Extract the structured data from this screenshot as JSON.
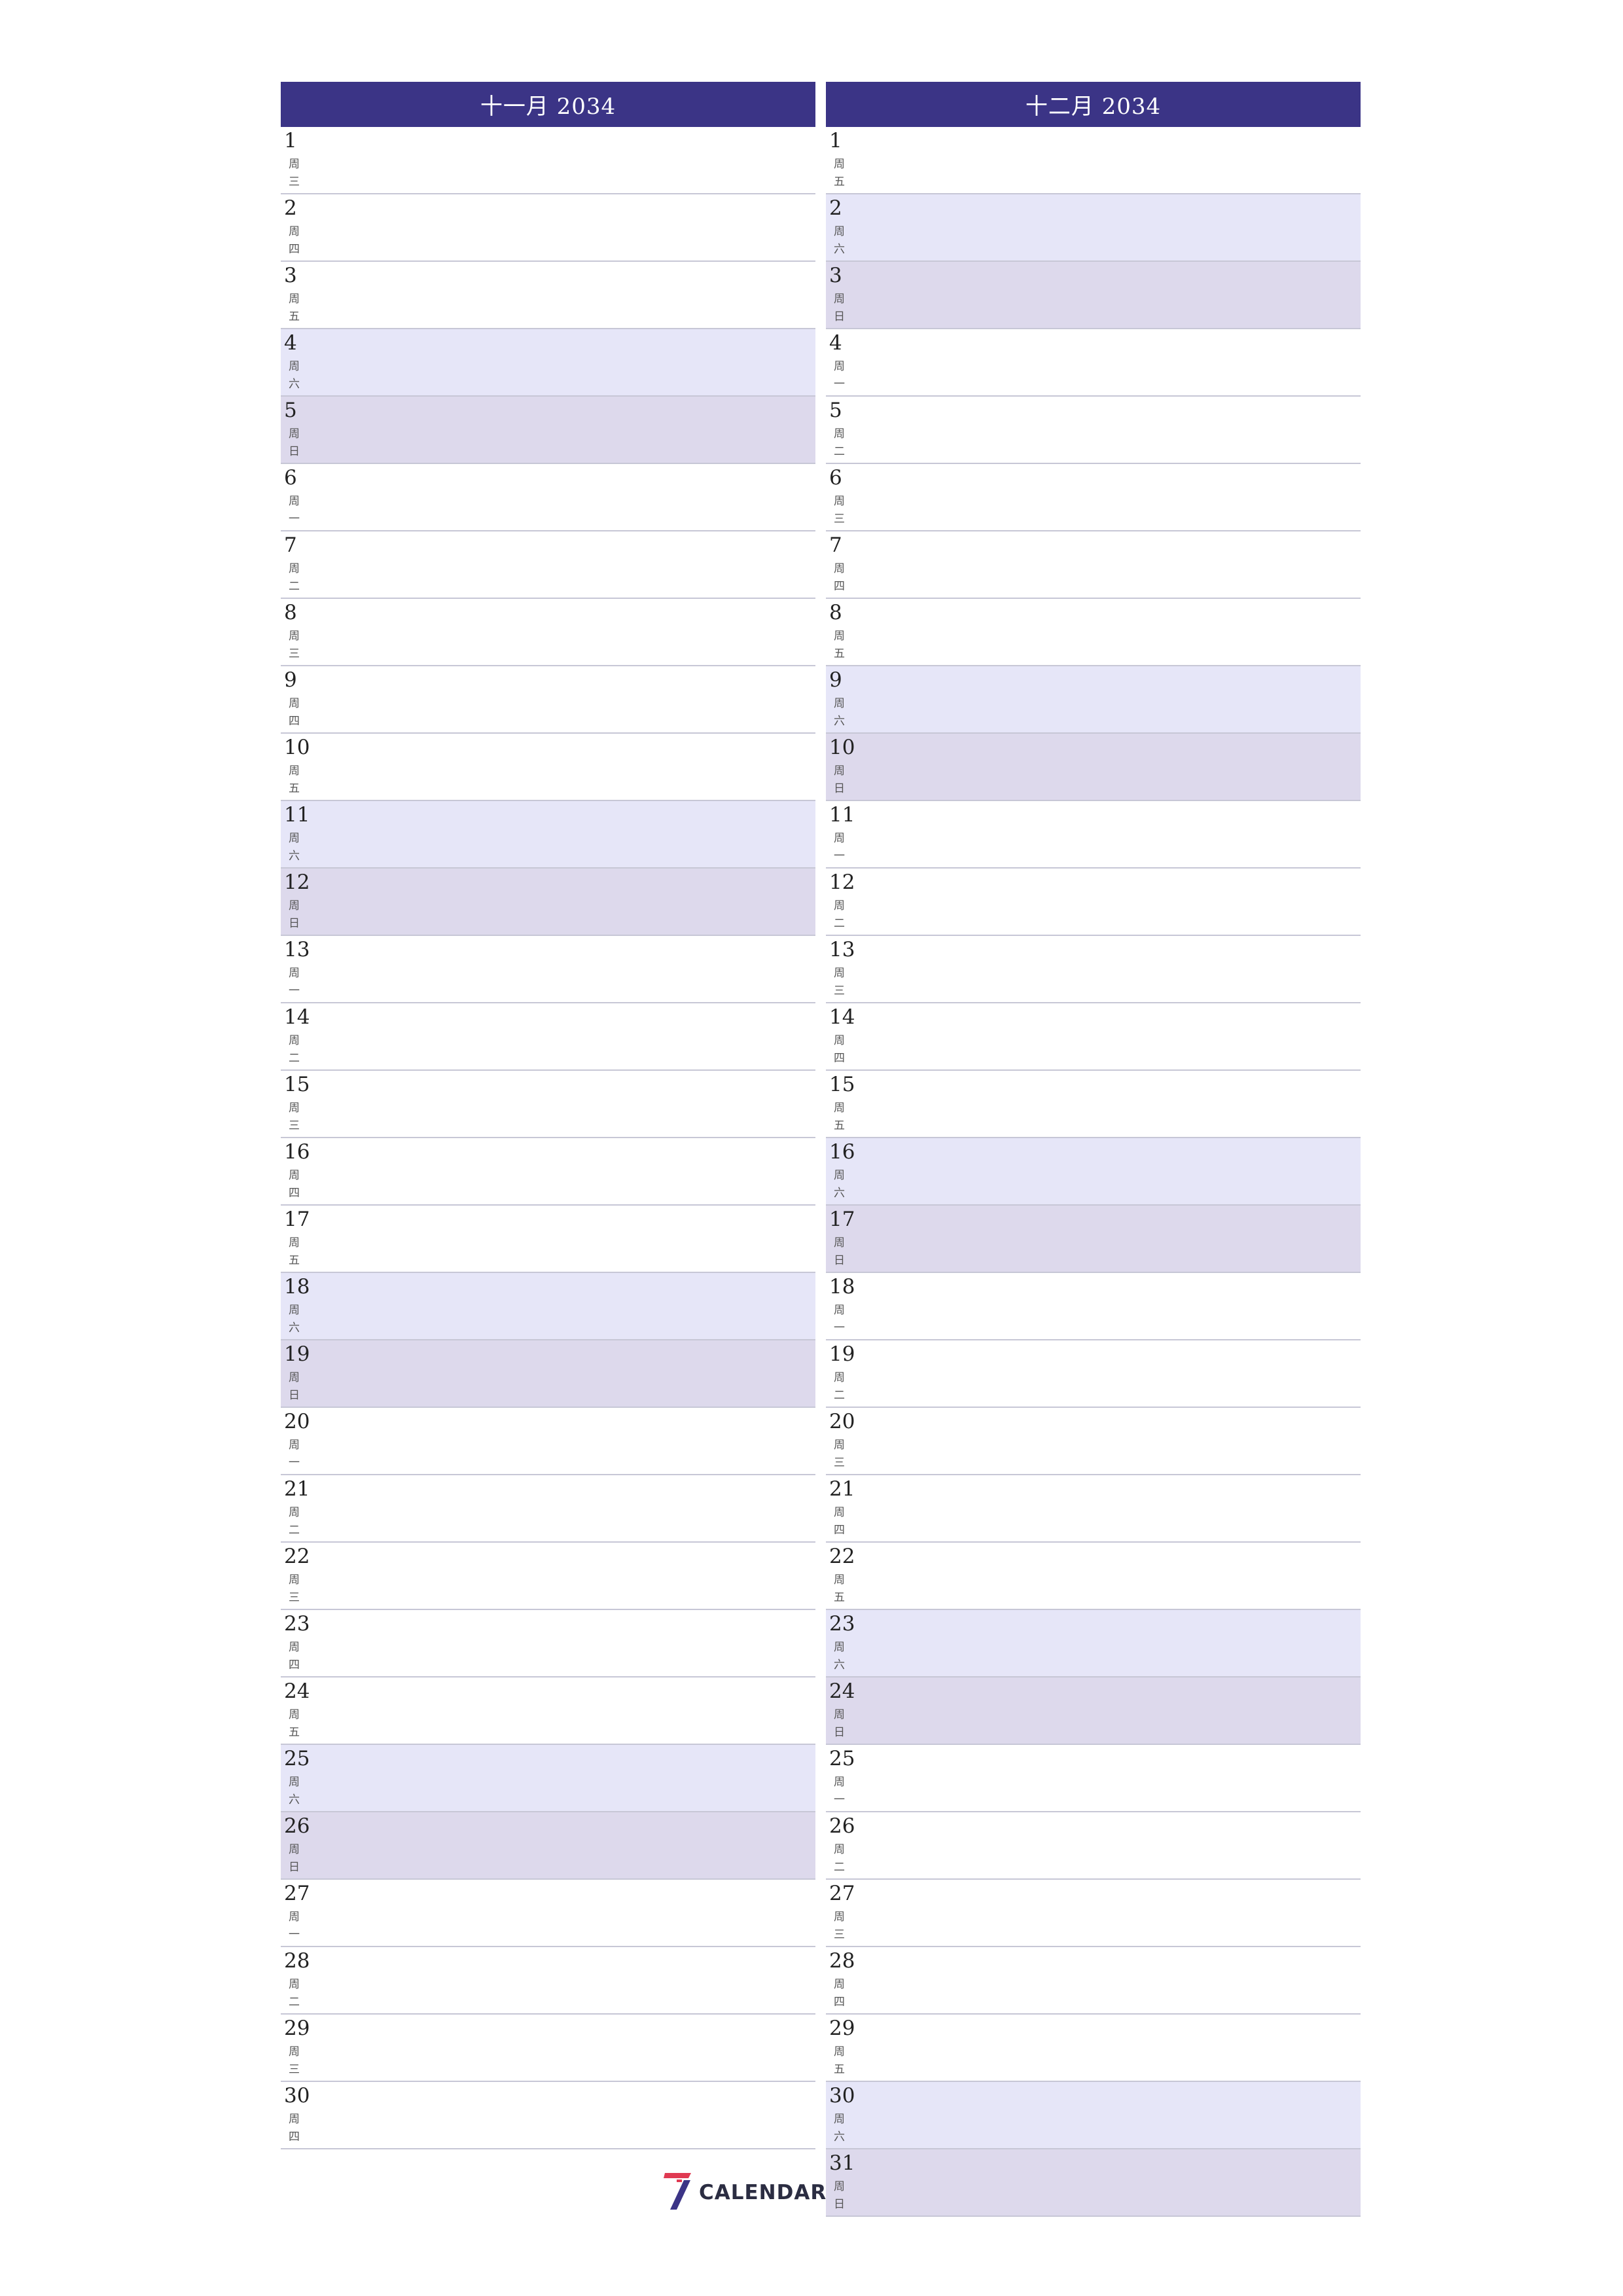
{
  "months": [
    {
      "title": "十一月 2034",
      "days": [
        {
          "num": "1",
          "wd": "周三",
          "type": "weekday"
        },
        {
          "num": "2",
          "wd": "周四",
          "type": "weekday"
        },
        {
          "num": "3",
          "wd": "周五",
          "type": "weekday"
        },
        {
          "num": "4",
          "wd": "周六",
          "type": "sat"
        },
        {
          "num": "5",
          "wd": "周日",
          "type": "sun"
        },
        {
          "num": "6",
          "wd": "周一",
          "type": "weekday"
        },
        {
          "num": "7",
          "wd": "周二",
          "type": "weekday"
        },
        {
          "num": "8",
          "wd": "周三",
          "type": "weekday"
        },
        {
          "num": "9",
          "wd": "周四",
          "type": "weekday"
        },
        {
          "num": "10",
          "wd": "周五",
          "type": "weekday"
        },
        {
          "num": "11",
          "wd": "周六",
          "type": "sat"
        },
        {
          "num": "12",
          "wd": "周日",
          "type": "sun"
        },
        {
          "num": "13",
          "wd": "周一",
          "type": "weekday"
        },
        {
          "num": "14",
          "wd": "周二",
          "type": "weekday"
        },
        {
          "num": "15",
          "wd": "周三",
          "type": "weekday"
        },
        {
          "num": "16",
          "wd": "周四",
          "type": "weekday"
        },
        {
          "num": "17",
          "wd": "周五",
          "type": "weekday"
        },
        {
          "num": "18",
          "wd": "周六",
          "type": "sat"
        },
        {
          "num": "19",
          "wd": "周日",
          "type": "sun"
        },
        {
          "num": "20",
          "wd": "周一",
          "type": "weekday"
        },
        {
          "num": "21",
          "wd": "周二",
          "type": "weekday"
        },
        {
          "num": "22",
          "wd": "周三",
          "type": "weekday"
        },
        {
          "num": "23",
          "wd": "周四",
          "type": "weekday"
        },
        {
          "num": "24",
          "wd": "周五",
          "type": "weekday"
        },
        {
          "num": "25",
          "wd": "周六",
          "type": "sat"
        },
        {
          "num": "26",
          "wd": "周日",
          "type": "sun"
        },
        {
          "num": "27",
          "wd": "周一",
          "type": "weekday"
        },
        {
          "num": "28",
          "wd": "周二",
          "type": "weekday"
        },
        {
          "num": "29",
          "wd": "周三",
          "type": "weekday"
        },
        {
          "num": "30",
          "wd": "周四",
          "type": "weekday"
        }
      ]
    },
    {
      "title": "十二月 2034",
      "days": [
        {
          "num": "1",
          "wd": "周五",
          "type": "weekday"
        },
        {
          "num": "2",
          "wd": "周六",
          "type": "sat"
        },
        {
          "num": "3",
          "wd": "周日",
          "type": "sun"
        },
        {
          "num": "4",
          "wd": "周一",
          "type": "weekday"
        },
        {
          "num": "5",
          "wd": "周二",
          "type": "weekday"
        },
        {
          "num": "6",
          "wd": "周三",
          "type": "weekday"
        },
        {
          "num": "7",
          "wd": "周四",
          "type": "weekday"
        },
        {
          "num": "8",
          "wd": "周五",
          "type": "weekday"
        },
        {
          "num": "9",
          "wd": "周六",
          "type": "sat"
        },
        {
          "num": "10",
          "wd": "周日",
          "type": "sun"
        },
        {
          "num": "11",
          "wd": "周一",
          "type": "weekday"
        },
        {
          "num": "12",
          "wd": "周二",
          "type": "weekday"
        },
        {
          "num": "13",
          "wd": "周三",
          "type": "weekday"
        },
        {
          "num": "14",
          "wd": "周四",
          "type": "weekday"
        },
        {
          "num": "15",
          "wd": "周五",
          "type": "weekday"
        },
        {
          "num": "16",
          "wd": "周六",
          "type": "sat"
        },
        {
          "num": "17",
          "wd": "周日",
          "type": "sun"
        },
        {
          "num": "18",
          "wd": "周一",
          "type": "weekday"
        },
        {
          "num": "19",
          "wd": "周二",
          "type": "weekday"
        },
        {
          "num": "20",
          "wd": "周三",
          "type": "weekday"
        },
        {
          "num": "21",
          "wd": "周四",
          "type": "weekday"
        },
        {
          "num": "22",
          "wd": "周五",
          "type": "weekday"
        },
        {
          "num": "23",
          "wd": "周六",
          "type": "sat"
        },
        {
          "num": "24",
          "wd": "周日",
          "type": "sun"
        },
        {
          "num": "25",
          "wd": "周一",
          "type": "weekday"
        },
        {
          "num": "26",
          "wd": "周二",
          "type": "weekday"
        },
        {
          "num": "27",
          "wd": "周三",
          "type": "weekday"
        },
        {
          "num": "28",
          "wd": "周四",
          "type": "weekday"
        },
        {
          "num": "29",
          "wd": "周五",
          "type": "weekday"
        },
        {
          "num": "30",
          "wd": "周六",
          "type": "sat"
        },
        {
          "num": "31",
          "wd": "周日",
          "type": "sun"
        }
      ]
    }
  ],
  "logo": {
    "text": "CALENDAR",
    "icon": "seven-logo-icon"
  },
  "colors": {
    "header_bg": "#3b3486",
    "saturday_bg": "#e6e6f8",
    "sunday_bg": "#ddd9ec",
    "row_border": "#c7c7d6",
    "logo_red": "#e03a52",
    "logo_navy": "#3b3486"
  }
}
